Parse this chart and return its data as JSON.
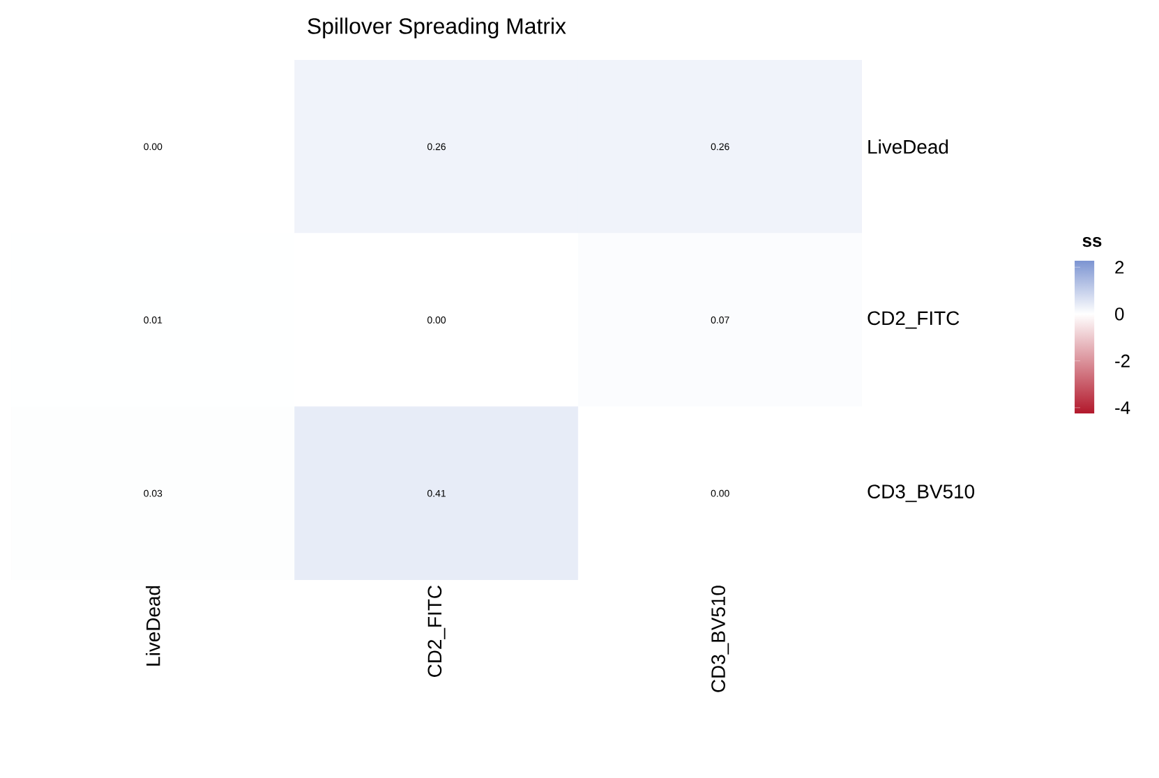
{
  "chart_data": {
    "type": "heatmap",
    "title": "Spillover Spreading Matrix",
    "clabel": "ss",
    "categories": [
      "LiveDead",
      "CD2_FITC",
      "CD3_BV510"
    ],
    "y_categories": [
      "LiveDead",
      "CD2_FITC",
      "CD3_BV510"
    ],
    "cells": [
      [
        0.0,
        0.26,
        0.26
      ],
      [
        0.01,
        0.0,
        0.07
      ],
      [
        0.03,
        0.41,
        0.0
      ]
    ],
    "cell_labels": [
      [
        "0.00",
        "0.26",
        "0.26"
      ],
      [
        "0.01",
        "0.00",
        "0.07"
      ],
      [
        "0.03",
        "0.41",
        "0.00"
      ]
    ],
    "clim": [
      -4.25,
      2.3
    ],
    "cticks": [
      2,
      0,
      -2,
      -4
    ]
  }
}
